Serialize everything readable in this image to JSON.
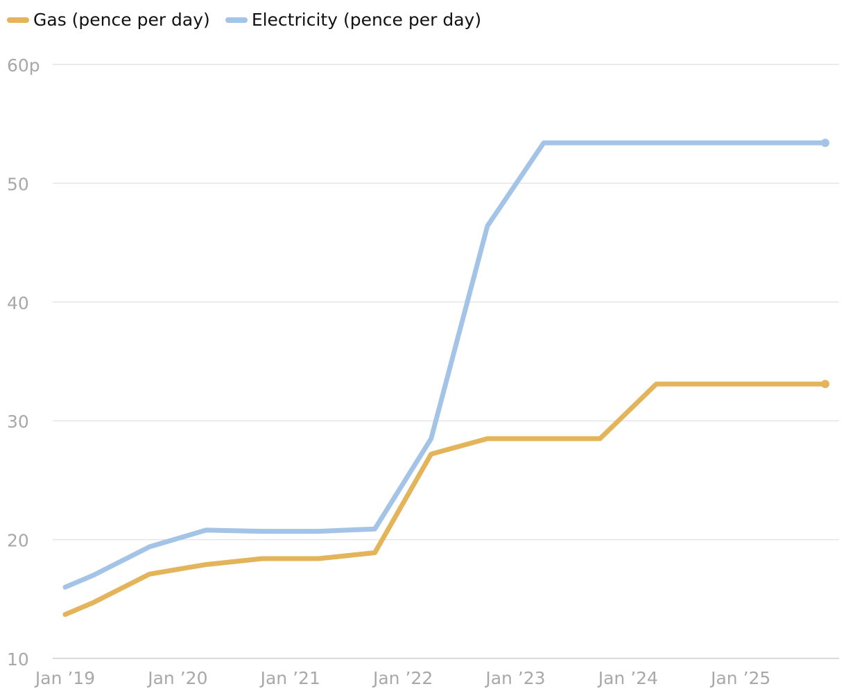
{
  "legend": [
    {
      "label": "Gas (pence per day)",
      "color": "#e3b45a"
    },
    {
      "label": "Electricity (pence per day)",
      "color": "#a3c4e6"
    }
  ],
  "chart_data": {
    "type": "line",
    "ylim": [
      10,
      60
    ],
    "yticks": [
      "10",
      "20",
      "30",
      "40",
      "50",
      "60p"
    ],
    "ytick_values": [
      10,
      20,
      30,
      40,
      50,
      60
    ],
    "xlim": [
      2019.0,
      2025.75
    ],
    "xtick_labels": [
      "Jan ’19",
      "Jan ’20",
      "Jan ’21",
      "Jan ’22",
      "Jan ’23",
      "Jan ’24",
      "Jan ’25"
    ],
    "xtick_values": [
      2019,
      2020,
      2021,
      2022,
      2023,
      2024,
      2025
    ],
    "grid": true,
    "legend_position": "top-left",
    "series": [
      {
        "name": "Gas (pence per day)",
        "color": "#e3b45a",
        "x": [
          2019.0,
          2019.25,
          2019.75,
          2020.25,
          2020.75,
          2021.25,
          2021.75,
          2022.25,
          2022.75,
          2023.25,
          2023.75,
          2024.25,
          2024.75,
          2025.25,
          2025.75
        ],
        "y": [
          13.7,
          14.7,
          17.1,
          17.9,
          18.4,
          18.4,
          18.9,
          27.2,
          28.5,
          28.5,
          28.5,
          33.1,
          33.1,
          33.1,
          33.1
        ]
      },
      {
        "name": "Electricity (pence per day)",
        "color": "#a3c4e6",
        "x": [
          2019.0,
          2019.25,
          2019.75,
          2020.25,
          2020.75,
          2021.25,
          2021.75,
          2022.25,
          2022.75,
          2023.25,
          2023.75,
          2024.25,
          2024.75,
          2025.25,
          2025.75
        ],
        "y": [
          16.0,
          17.0,
          19.4,
          20.8,
          20.7,
          20.7,
          20.9,
          28.5,
          46.4,
          53.4,
          53.4,
          53.4,
          53.4,
          53.4,
          53.4
        ]
      }
    ]
  }
}
